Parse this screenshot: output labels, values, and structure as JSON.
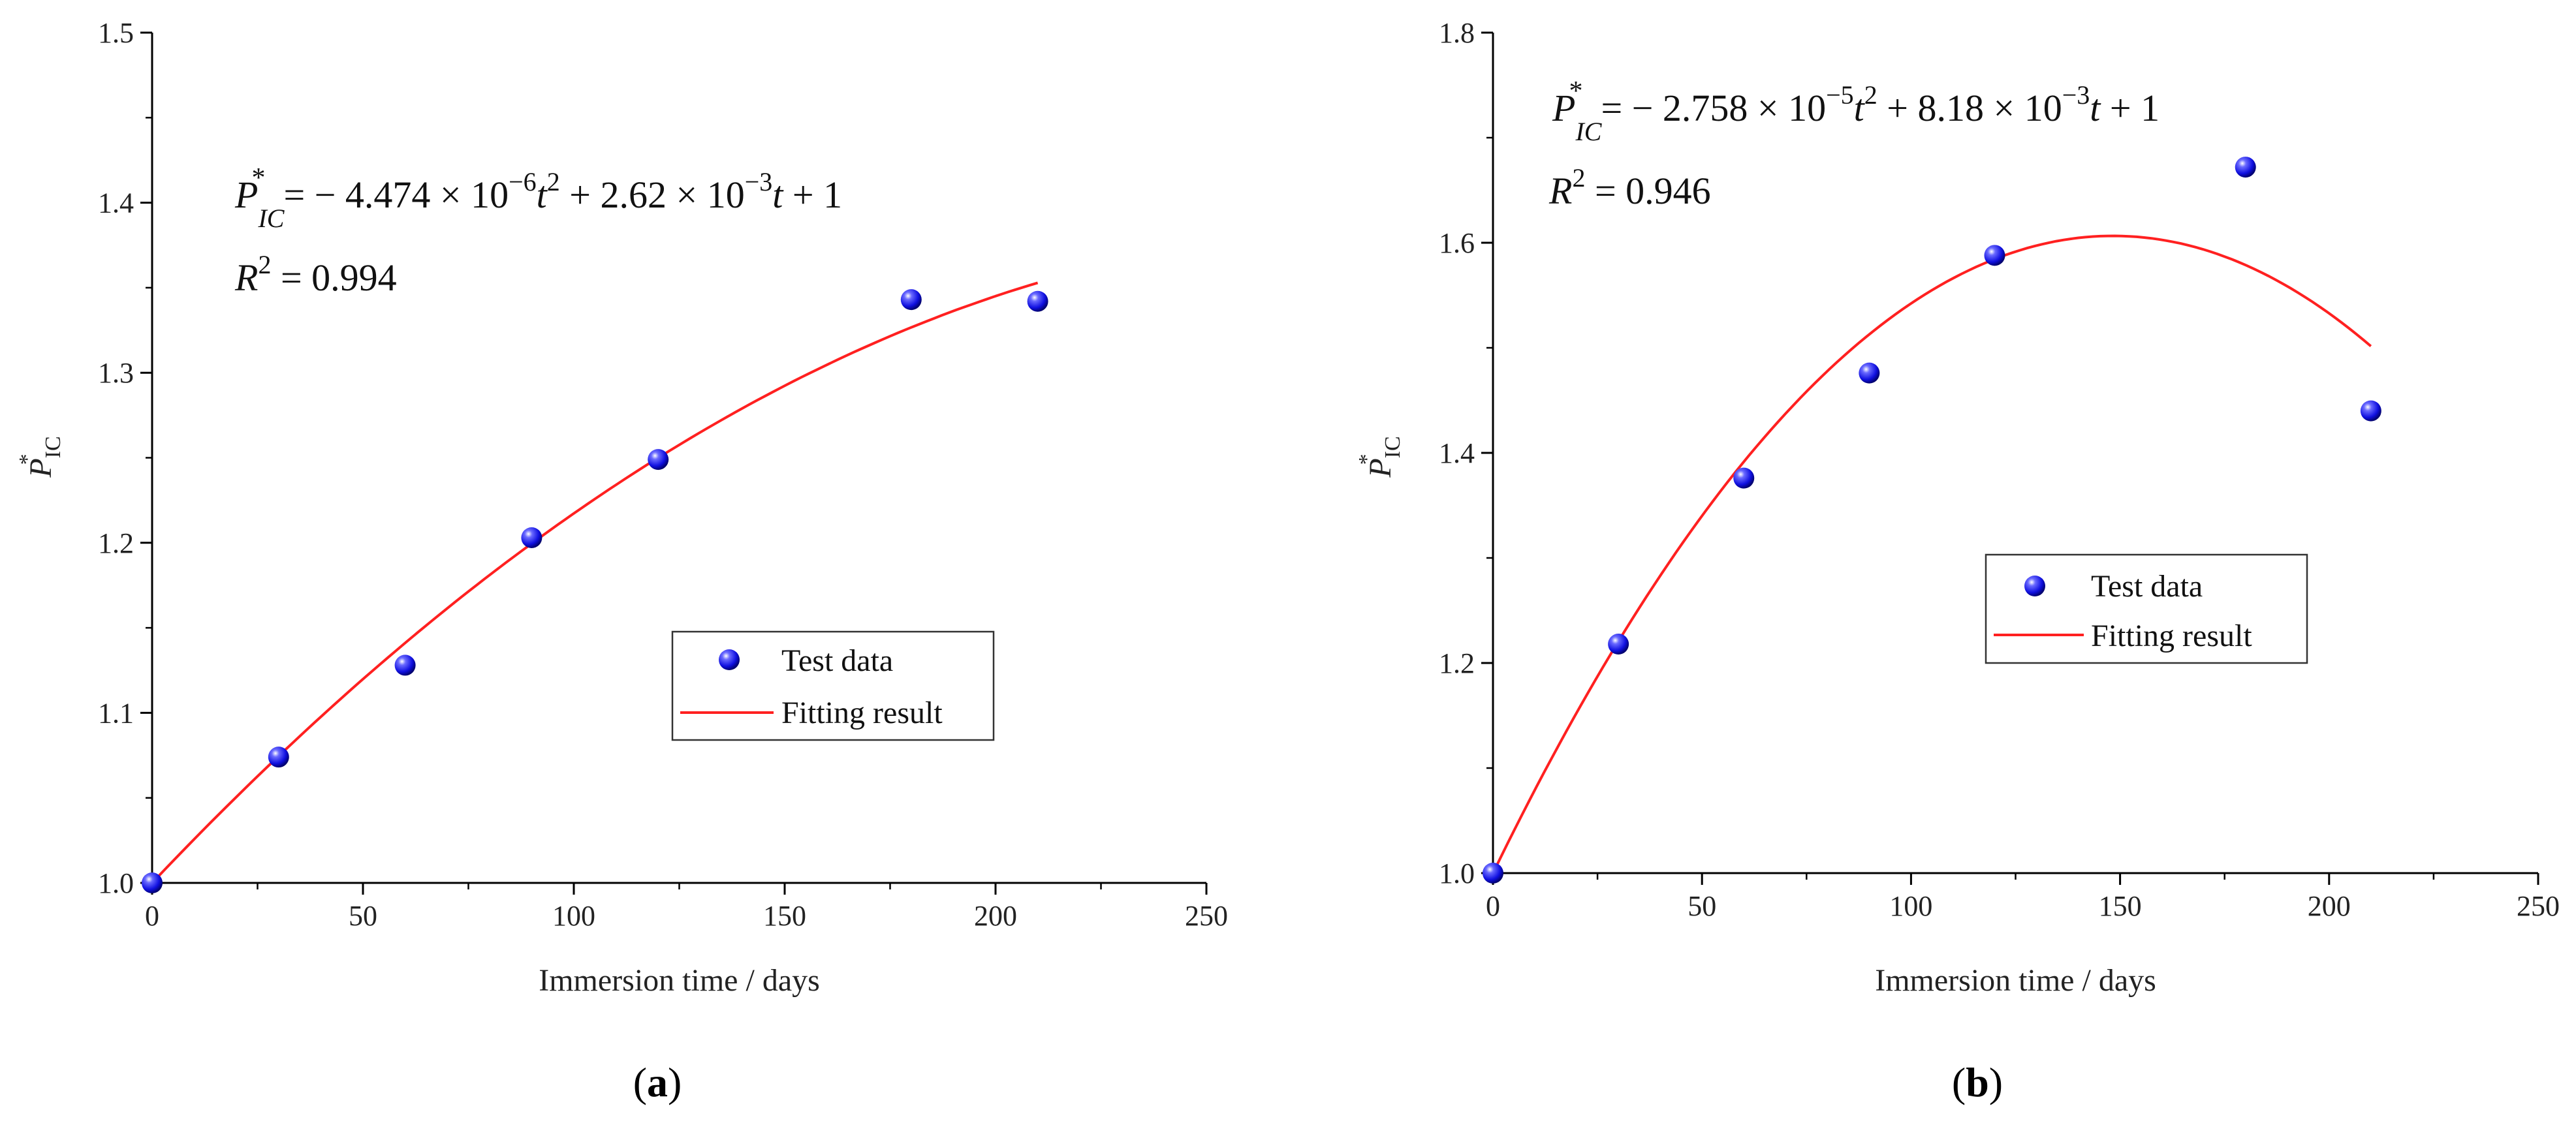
{
  "chart_data": [
    {
      "type": "scatter",
      "panel_label": "a",
      "xlabel": "Immersion time / days",
      "ylabel": {
        "base": "P",
        "sup": "*",
        "sub": "IC"
      },
      "xlim": [
        0,
        250
      ],
      "ylim": [
        1.0,
        1.5
      ],
      "xticks": [
        0,
        50,
        100,
        150,
        200,
        250
      ],
      "yticks": [
        1.0,
        1.1,
        1.2,
        1.3,
        1.4,
        1.5
      ],
      "ytick_labels": [
        "1.0",
        "1.1",
        "1.2",
        "1.3",
        "1.4",
        "1.5"
      ],
      "series": [
        {
          "name": "Test data",
          "kind": "points",
          "color": "#1a1aff",
          "x": [
            0,
            30,
            60,
            90,
            120,
            180,
            210
          ],
          "y": [
            1.0,
            1.074,
            1.128,
            1.203,
            1.249,
            1.343,
            1.342
          ]
        },
        {
          "name": "Fitting result",
          "kind": "fit",
          "color": "#ff2020",
          "coefficients": {
            "a": -4.474e-06,
            "b": 0.00262,
            "c": 1
          },
          "x_range": [
            0,
            210
          ]
        }
      ],
      "legend": [
        "Test data",
        "Fitting result"
      ],
      "equation": {
        "lhs_base": "P",
        "lhs_sup": "*",
        "lhs_sub": "IC",
        "a_mant": "4.474",
        "a_exp": "−6",
        "b_mant": "2.62",
        "b_exp": "−3",
        "r2_value": "0.994"
      }
    },
    {
      "type": "scatter",
      "panel_label": "b",
      "xlabel": "Immersion time / days",
      "ylabel": {
        "base": "P",
        "sup": "*",
        "sub": "IC"
      },
      "xlim": [
        0,
        250
      ],
      "ylim": [
        1.0,
        1.8
      ],
      "xticks": [
        0,
        50,
        100,
        150,
        200,
        250
      ],
      "yticks": [
        1.0,
        1.2,
        1.4,
        1.6,
        1.8
      ],
      "ytick_labels": [
        "1.0",
        "1.2",
        "1.4",
        "1.6",
        "1.8"
      ],
      "series": [
        {
          "name": "Test data",
          "kind": "points",
          "color": "#1a1aff",
          "x": [
            0,
            30,
            60,
            90,
            120,
            180,
            210
          ],
          "y": [
            1.0,
            1.218,
            1.376,
            1.476,
            1.588,
            1.672,
            1.44
          ]
        },
        {
          "name": "Fitting result",
          "kind": "fit",
          "color": "#ff2020",
          "coefficients": {
            "a": -2.758e-05,
            "b": 0.00818,
            "c": 1
          },
          "x_range": [
            0,
            210
          ]
        }
      ],
      "legend": [
        "Test data",
        "Fitting result"
      ],
      "equation": {
        "lhs_base": "P",
        "lhs_sup": "*",
        "lhs_sub": "IC",
        "a_mant": "2.758",
        "a_exp": "−5",
        "b_mant": "8.18",
        "b_exp": "−3",
        "r2_value": "0.946"
      }
    }
  ]
}
